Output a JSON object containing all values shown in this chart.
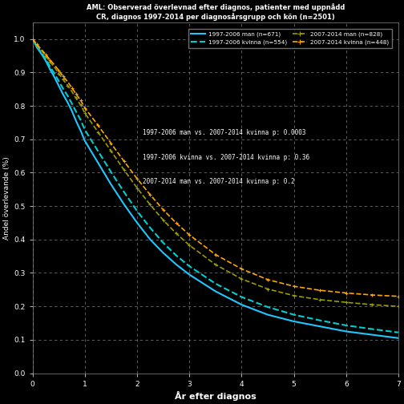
{
  "title_line1": "AML: Observerad överlevnad efter diagnos, patienter med uppnådd",
  "title_line2": "CR, diagnos 1997-2014 per diagnosårsgrupp och kön (n=2501)",
  "xlabel": "År efter diagnos",
  "ylabel": "Andel överlevande (%)",
  "xlim": [
    0,
    7
  ],
  "ylim": [
    0.0,
    1.05
  ],
  "xticks": [
    0,
    1,
    2,
    3,
    4,
    5,
    6,
    7
  ],
  "ytick_positions": [
    0.0,
    0.1,
    0.2,
    0.3,
    0.4,
    0.5,
    0.6,
    0.7,
    0.8,
    0.9,
    1.0
  ],
  "ytick_labels": [
    "0.0",
    "0.1 ",
    "0.2 ",
    "0.3 ",
    "0.4 ",
    "0.5 ",
    "0.6 ",
    "0.7 ",
    "0.8 ",
    "0.9 ",
    "1.0"
  ],
  "legend": [
    {
      "label": "1997-2006 man (n=671)",
      "color": "#1EC8FF",
      "linestyle": "solid",
      "marker": "none"
    },
    {
      "label": "1997-2006 kvinna (n=554)",
      "color": "#00CED1",
      "linestyle": "dashed",
      "marker": "none"
    },
    {
      "label": "2007-2014 man (n=828)",
      "color": "#9B9B00",
      "linestyle": "dashed",
      "marker": "+"
    },
    {
      "label": "2007-2014 kvinna (n=448)",
      "color": "#FFA500",
      "linestyle": "dashed",
      "marker": "+"
    }
  ],
  "annotations": [
    "1997-2006 man vs. 2007-2014 kvinna p: 0.0003",
    "1997-2006 kvinna vs. 2007-2014 kvinna p: 0.36",
    "2007-2014 man vs. 2007-2014 kvinna p: 0.2"
  ],
  "background_color": "#000000",
  "text_color": "#FFFFFF",
  "curves": {
    "man_9706": {
      "t": [
        0.0,
        0.08,
        0.17,
        0.25,
        0.33,
        0.42,
        0.5,
        0.58,
        0.67,
        0.75,
        0.83,
        0.92,
        1.0,
        1.25,
        1.5,
        1.75,
        2.0,
        2.25,
        2.5,
        2.75,
        3.0,
        3.5,
        4.0,
        4.5,
        5.0,
        5.5,
        6.0,
        6.5,
        7.0
      ],
      "s": [
        1.0,
        0.975,
        0.955,
        0.935,
        0.91,
        0.885,
        0.86,
        0.835,
        0.81,
        0.785,
        0.755,
        0.725,
        0.695,
        0.63,
        0.565,
        0.505,
        0.45,
        0.4,
        0.36,
        0.325,
        0.295,
        0.245,
        0.205,
        0.175,
        0.155,
        0.14,
        0.125,
        0.115,
        0.105
      ],
      "color": "#1EC8FF",
      "linestyle": "solid",
      "marker": "none",
      "lw": 1.5
    },
    "kvinna_9706": {
      "t": [
        0.0,
        0.08,
        0.17,
        0.25,
        0.33,
        0.42,
        0.5,
        0.58,
        0.67,
        0.75,
        0.83,
        0.92,
        1.0,
        1.25,
        1.5,
        1.75,
        2.0,
        2.25,
        2.5,
        2.75,
        3.0,
        3.5,
        4.0,
        4.5,
        5.0,
        5.5,
        6.0,
        6.5,
        7.0
      ],
      "s": [
        1.0,
        0.978,
        0.958,
        0.94,
        0.918,
        0.896,
        0.874,
        0.852,
        0.83,
        0.807,
        0.783,
        0.757,
        0.728,
        0.665,
        0.602,
        0.542,
        0.485,
        0.435,
        0.39,
        0.352,
        0.32,
        0.268,
        0.228,
        0.198,
        0.175,
        0.158,
        0.143,
        0.132,
        0.122
      ],
      "color": "#00CED1",
      "linestyle": "dashed",
      "marker": "none",
      "lw": 1.5
    },
    "man_0714": {
      "t": [
        0.0,
        0.08,
        0.17,
        0.25,
        0.33,
        0.42,
        0.5,
        0.58,
        0.67,
        0.75,
        0.83,
        0.92,
        1.0,
        1.25,
        1.5,
        1.75,
        2.0,
        2.25,
        2.5,
        2.75,
        3.0,
        3.5,
        4.0,
        4.5,
        5.0,
        5.5,
        6.0,
        6.5,
        7.0
      ],
      "s": [
        1.0,
        0.982,
        0.965,
        0.95,
        0.932,
        0.915,
        0.897,
        0.879,
        0.861,
        0.843,
        0.823,
        0.802,
        0.778,
        0.722,
        0.665,
        0.608,
        0.554,
        0.504,
        0.458,
        0.418,
        0.383,
        0.325,
        0.282,
        0.252,
        0.232,
        0.22,
        0.212,
        0.205,
        0.2
      ],
      "color": "#9B9B00",
      "linestyle": "dashed",
      "marker": "+",
      "lw": 1.2
    },
    "kvinna_0714": {
      "t": [
        0.0,
        0.08,
        0.17,
        0.25,
        0.33,
        0.42,
        0.5,
        0.58,
        0.67,
        0.75,
        0.83,
        0.92,
        1.0,
        1.25,
        1.5,
        1.75,
        2.0,
        2.25,
        2.5,
        2.75,
        3.0,
        3.5,
        4.0,
        4.5,
        5.0,
        5.5,
        6.0,
        6.5,
        7.0
      ],
      "s": [
        1.0,
        0.984,
        0.968,
        0.954,
        0.938,
        0.922,
        0.906,
        0.889,
        0.872,
        0.854,
        0.836,
        0.816,
        0.794,
        0.742,
        0.688,
        0.634,
        0.582,
        0.534,
        0.489,
        0.449,
        0.414,
        0.355,
        0.312,
        0.28,
        0.26,
        0.248,
        0.24,
        0.234,
        0.23
      ],
      "color": "#FFA500",
      "linestyle": "dashed",
      "marker": "+",
      "lw": 1.2
    }
  }
}
